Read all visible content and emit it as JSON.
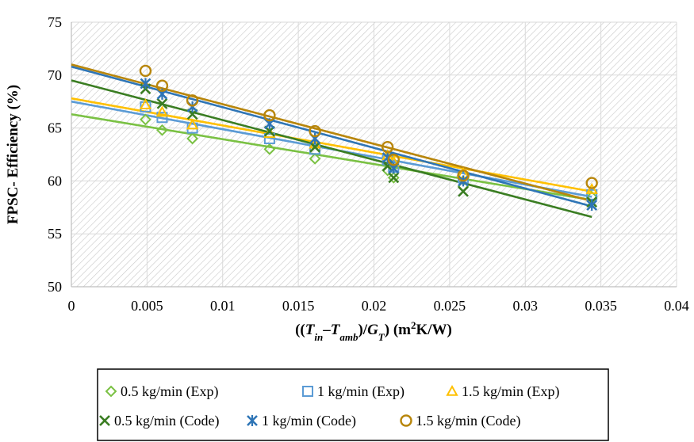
{
  "chart_data": {
    "type": "scatter",
    "ylabel": "FPSC- Efficiency (%)",
    "xlabel_parts": [
      "((",
      "T",
      "in",
      "–",
      "T",
      "amb",
      ")/",
      "G",
      "T",
      ") (m",
      "2",
      "K/W)"
    ],
    "xlim": [
      0,
      0.04
    ],
    "ylim": [
      50,
      75
    ],
    "x_ticks": [
      0,
      0.005,
      0.01,
      0.015,
      0.02,
      0.025,
      0.03,
      0.035,
      0.04
    ],
    "x_tick_labels": [
      "0",
      "0.005",
      "0.01",
      "0.015",
      "0.02",
      "0.025",
      "0.03",
      "0.035",
      "0.04"
    ],
    "y_ticks": [
      50,
      55,
      60,
      65,
      70,
      75
    ],
    "y_tick_labels": [
      "50",
      "55",
      "60",
      "65",
      "70",
      "75"
    ],
    "grid": "vertical and horizontal, hatched plot background",
    "legend_position": "bottom",
    "series": [
      {
        "name": "0.5 kg/min (Exp)",
        "marker": "diamond",
        "color": "#7AC143",
        "x": [
          0.0049,
          0.006,
          0.008,
          0.0131,
          0.0161,
          0.0209,
          0.0213,
          0.0259,
          0.0344
        ],
        "y": [
          65.8,
          64.8,
          64.0,
          63.0,
          62.1,
          61.0,
          60.3,
          59.5,
          58.5
        ],
        "trend": [
          [
            0,
            66.3
          ],
          [
            0.0344,
            58.2
          ]
        ]
      },
      {
        "name": "1 kg/min (Exp)",
        "marker": "square",
        "color": "#5B9BD5",
        "x": [
          0.0049,
          0.006,
          0.008,
          0.0131,
          0.0161,
          0.0209,
          0.0213,
          0.0259,
          0.0344
        ],
        "y": [
          67.0,
          66.0,
          65.0,
          64.0,
          63.0,
          62.0,
          61.3,
          60.3,
          58.7
        ],
        "trend": [
          [
            0,
            67.5
          ],
          [
            0.0344,
            58.5
          ]
        ]
      },
      {
        "name": "1.5 kg/min (Exp)",
        "marker": "triangle",
        "color": "#FFC000",
        "x": [
          0.0049,
          0.006,
          0.008,
          0.0131,
          0.0161,
          0.0209,
          0.0213,
          0.0259,
          0.0344
        ],
        "y": [
          67.2,
          66.5,
          65.3,
          64.5,
          63.5,
          62.4,
          61.8,
          60.7,
          59.2
        ],
        "trend": [
          [
            0,
            67.8
          ],
          [
            0.0344,
            59.0
          ]
        ]
      },
      {
        "name": "0.5 kg/min (Code)",
        "marker": "x",
        "color": "#3A7D22",
        "x": [
          0.0049,
          0.006,
          0.008,
          0.0131,
          0.0161,
          0.0209,
          0.0213,
          0.0259,
          0.0344
        ],
        "y": [
          68.7,
          67.3,
          66.3,
          64.7,
          63.2,
          61.4,
          60.3,
          59.0,
          58.0
        ],
        "trend": [
          [
            0,
            69.5
          ],
          [
            0.0344,
            56.6
          ]
        ]
      },
      {
        "name": "1 kg/min (Code)",
        "marker": "star",
        "color": "#2E75B6",
        "x": [
          0.0049,
          0.006,
          0.008,
          0.0131,
          0.0161,
          0.0209,
          0.0213,
          0.0259,
          0.0344
        ],
        "y": [
          69.2,
          68.2,
          67.0,
          65.4,
          64.0,
          62.2,
          61.2,
          60.0,
          57.7
        ],
        "trend": [
          [
            0,
            70.8
          ],
          [
            0.0344,
            57.6
          ]
        ]
      },
      {
        "name": "1.5 kg/min (Code)",
        "marker": "circle",
        "color": "#B8860B",
        "x": [
          0.0049,
          0.006,
          0.008,
          0.0131,
          0.0161,
          0.0209,
          0.0213,
          0.0259,
          0.0344
        ],
        "y": [
          70.4,
          69.0,
          67.6,
          66.2,
          64.7,
          63.2,
          62.0,
          60.5,
          59.8
        ],
        "trend": [
          [
            0,
            71.0
          ],
          [
            0.0344,
            58.1
          ]
        ]
      }
    ]
  }
}
